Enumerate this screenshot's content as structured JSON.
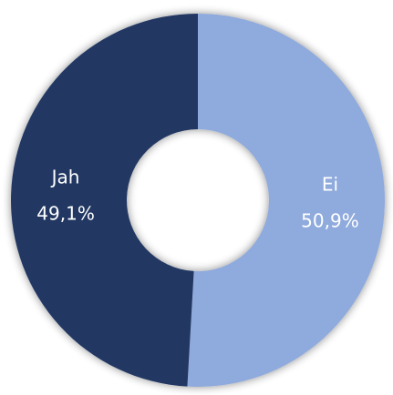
{
  "chart_data": {
    "type": "donut",
    "categories": [
      "Ei",
      "Jah"
    ],
    "values": [
      50.9,
      49.1
    ],
    "value_labels": [
      "50,9%",
      "49,1%"
    ],
    "colors": [
      "#8faadc",
      "#203864"
    ]
  }
}
